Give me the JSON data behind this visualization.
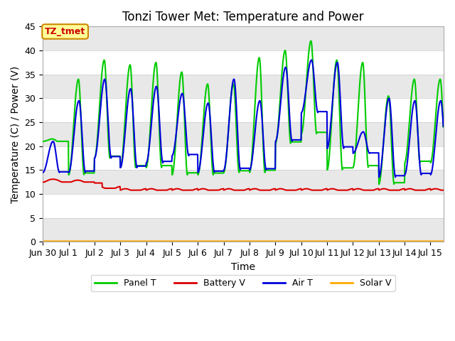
{
  "title": "Tonzi Tower Met: Temperature and Power",
  "xlabel": "Time",
  "ylabel": "Temperature (C) / Power (V)",
  "annotation": "TZ_tmet",
  "annotation_color": "#cc0000",
  "annotation_bg": "#ffff99",
  "annotation_border": "#cc8800",
  "ylim": [
    0,
    45
  ],
  "xlim_start": 0,
  "xlim_end": 15.5,
  "background_color": "#ffffff",
  "plot_bg_color": "#ffffff",
  "band_color": "#e8e8e8",
  "grid_color": "#ffffff",
  "panel_t_color": "#00cc00",
  "battery_v_color": "#dd0000",
  "air_t_color": "#0000dd",
  "solar_v_color": "#ffaa00",
  "legend_labels": [
    "Panel T",
    "Battery V",
    "Air T",
    "Solar V"
  ],
  "tick_labels": [
    "Jun 30",
    "Jul 1",
    "Jul 2",
    "Jul 3",
    "Jul 4",
    "Jul 5",
    "Jul 6",
    "Jul 7",
    "Jul 8",
    "Jul 9",
    "Jul 10",
    "Jul 11",
    "Jul 12",
    "Jul 13",
    "Jul 14",
    "Jul 15"
  ],
  "yticks": [
    0,
    5,
    10,
    15,
    20,
    25,
    30,
    35,
    40,
    45
  ],
  "title_fontsize": 12,
  "axis_label_fontsize": 10,
  "tick_fontsize": 9,
  "line_width": 1.5
}
